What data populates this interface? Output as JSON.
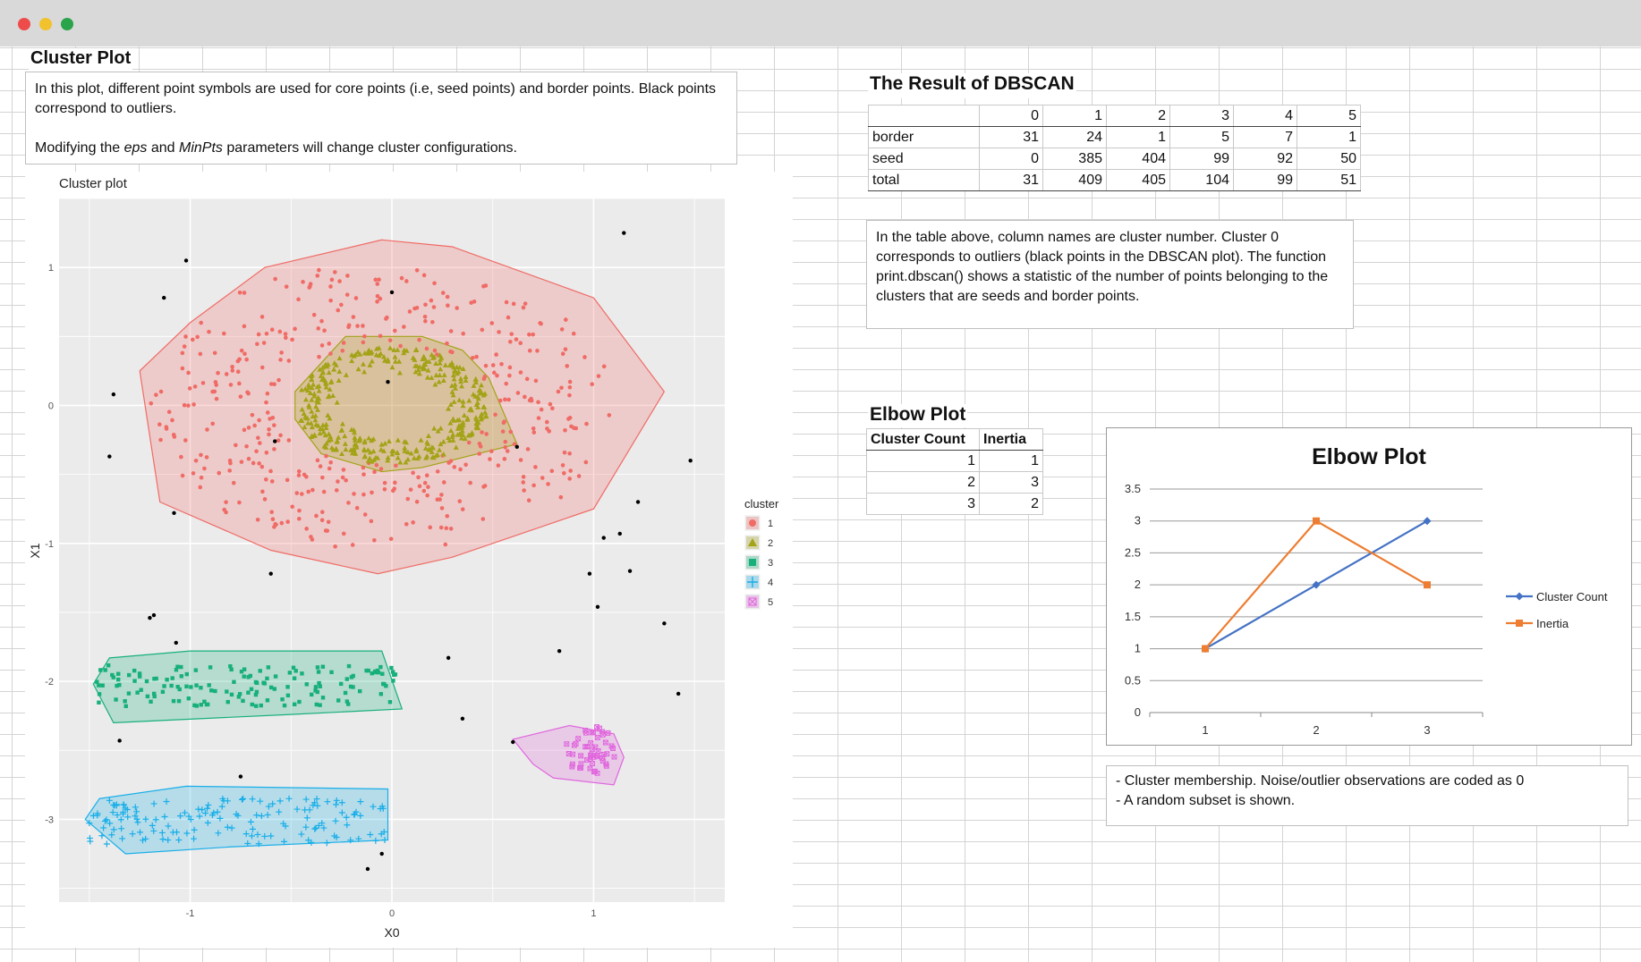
{
  "window": {
    "controls": [
      "close",
      "minimize",
      "maximize"
    ],
    "colors": {
      "close": "#ee4b4b",
      "minimize": "#f2c12e",
      "maximize": "#2aa44a"
    }
  },
  "cluster_section": {
    "header": "Cluster Plot",
    "description_line1": "In this plot, different point symbols are used for core points (i.e, seed points) and border points. Black points correspond to outliers.",
    "description_line2_pre": "Modifying the ",
    "description_line2_eps": "eps",
    "description_line2_mid": " and ",
    "description_line2_minpts": "MinPts",
    "description_line2_post": " parameters will change cluster configurations."
  },
  "chart_data": [
    {
      "type": "scatter",
      "title": "Cluster plot",
      "xlabel": "X0",
      "ylabel": "X1",
      "xlim": [
        -1.65,
        1.65
      ],
      "ylim": [
        -3.6,
        1.5
      ],
      "xticks": [
        "-1",
        "0",
        "1"
      ],
      "yticks": [
        "1",
        "0",
        "-1",
        "-2",
        "-3"
      ],
      "grid": true,
      "legend": {
        "title": "cluster",
        "placement": "right",
        "entries": [
          {
            "name": "1",
            "symbol": "circle",
            "color": "#f06b66"
          },
          {
            "name": "2",
            "symbol": "triangle",
            "color": "#a3a318"
          },
          {
            "name": "3",
            "symbol": "square",
            "color": "#17b07a"
          },
          {
            "name": "4",
            "symbol": "plus",
            "color": "#18aee8"
          },
          {
            "name": "5",
            "symbol": "square-x",
            "color": "#e066dd"
          }
        ]
      },
      "clusters": [
        {
          "name": "1",
          "shape": "ring",
          "center": [
            -0.05,
            0.0
          ],
          "inner_radius": [
            0.55,
            0.42
          ],
          "outer_radius": [
            1.15,
            1.05
          ],
          "hull": [
            [
              -0.05,
              1.2
            ],
            [
              0.3,
              1.15
            ],
            [
              1.0,
              0.78
            ],
            [
              1.35,
              0.1
            ],
            [
              1.0,
              -0.75
            ],
            [
              0.3,
              -1.1
            ],
            [
              -0.07,
              -1.22
            ],
            [
              -0.6,
              -1.05
            ],
            [
              -1.15,
              -0.7
            ],
            [
              -1.25,
              0.25
            ],
            [
              -1.0,
              0.6
            ],
            [
              -0.63,
              1.0
            ]
          ]
        },
        {
          "name": "2",
          "shape": "filled",
          "center": [
            0.0,
            0.0
          ],
          "radius": [
            0.48,
            0.42
          ],
          "hull": [
            [
              -0.23,
              0.5
            ],
            [
              0.15,
              0.5
            ],
            [
              0.35,
              0.4
            ],
            [
              0.48,
              0.2
            ],
            [
              0.62,
              -0.28
            ],
            [
              0.15,
              -0.45
            ],
            [
              -0.05,
              -0.48
            ],
            [
              -0.35,
              -0.35
            ],
            [
              -0.48,
              -0.1
            ],
            [
              -0.48,
              0.1
            ]
          ]
        },
        {
          "name": "3",
          "shape": "band",
          "x_range": [
            -1.48,
            0.05
          ],
          "y_range": [
            -2.28,
            -1.78
          ],
          "hull": [
            [
              -1.4,
              -1.83
            ],
            [
              -1.0,
              -1.78
            ],
            [
              -0.05,
              -1.78
            ],
            [
              0.05,
              -2.2
            ],
            [
              -0.5,
              -2.24
            ],
            [
              -1.38,
              -2.3
            ],
            [
              -1.48,
              -2.02
            ]
          ]
        },
        {
          "name": "4",
          "shape": "band",
          "x_range": [
            -1.5,
            -0.02
          ],
          "y_range": [
            -3.28,
            -2.75
          ],
          "hull": [
            [
              -1.45,
              -2.85
            ],
            [
              -1.02,
              -2.76
            ],
            [
              -0.02,
              -2.78
            ],
            [
              -0.02,
              -3.15
            ],
            [
              -0.8,
              -3.2
            ],
            [
              -1.32,
              -3.25
            ],
            [
              -1.52,
              -3.0
            ]
          ]
        },
        {
          "name": "5",
          "shape": "blob",
          "center": [
            0.98,
            -2.5
          ],
          "radius": [
            0.13,
            0.18
          ],
          "hull": [
            [
              0.6,
              -2.42
            ],
            [
              0.88,
              -2.32
            ],
            [
              1.1,
              -2.38
            ],
            [
              1.15,
              -2.55
            ],
            [
              1.1,
              -2.75
            ],
            [
              0.8,
              -2.7
            ],
            [
              0.7,
              -2.6
            ]
          ]
        }
      ],
      "outliers": [
        [
          -1.02,
          1.05
        ],
        [
          -1.13,
          0.78
        ],
        [
          -1.38,
          0.08
        ],
        [
          -1.4,
          -0.37
        ],
        [
          -1.08,
          -0.78
        ],
        [
          1.15,
          1.25
        ],
        [
          0.0,
          0.82
        ],
        [
          -0.02,
          0.17
        ],
        [
          -0.58,
          -0.26
        ],
        [
          0.62,
          -0.3
        ],
        [
          1.48,
          -0.4
        ],
        [
          1.22,
          -0.7
        ],
        [
          1.13,
          -0.93
        ],
        [
          1.05,
          -0.96
        ],
        [
          -0.6,
          -1.22
        ],
        [
          0.98,
          -1.22
        ],
        [
          1.18,
          -1.2
        ],
        [
          1.02,
          -1.46
        ],
        [
          -1.18,
          -1.52
        ],
        [
          -1.2,
          -1.54
        ],
        [
          -1.07,
          -1.72
        ],
        [
          0.28,
          -1.83
        ],
        [
          0.83,
          -1.78
        ],
        [
          1.35,
          -1.58
        ],
        [
          1.42,
          -2.09
        ],
        [
          -1.35,
          -2.43
        ],
        [
          0.35,
          -2.27
        ],
        [
          0.6,
          -2.44
        ],
        [
          -0.75,
          -2.69
        ],
        [
          -0.05,
          -3.25
        ],
        [
          -0.12,
          -3.36
        ]
      ]
    },
    {
      "type": "line",
      "title": "Elbow Plot",
      "categories": [
        "1",
        "2",
        "3"
      ],
      "ylim": [
        0,
        3.5
      ],
      "yticks": [
        "3.5",
        "3",
        "2.5",
        "2",
        "1.5",
        "1",
        "0.5",
        "0"
      ],
      "legend_placement": "right",
      "series": [
        {
          "name": "Cluster Count",
          "values": [
            1,
            2,
            3
          ],
          "color": "#4472c4",
          "marker": "diamond"
        },
        {
          "name": "Inertia",
          "values": [
            1,
            3,
            2
          ],
          "color": "#ed7d31",
          "marker": "square"
        }
      ]
    }
  ],
  "dbscan": {
    "header": "The Result of DBSCAN",
    "columns": [
      "0",
      "1",
      "2",
      "3",
      "4",
      "5"
    ],
    "rows": [
      {
        "label": "border",
        "values": [
          "31",
          "24",
          "1",
          "5",
          "7",
          "1"
        ]
      },
      {
        "label": "seed",
        "values": [
          "0",
          "385",
          "404",
          "99",
          "92",
          "50"
        ]
      },
      {
        "label": "total",
        "values": [
          "31",
          "409",
          "405",
          "104",
          "99",
          "51"
        ]
      }
    ],
    "note": "In the table above, column names are cluster number. Cluster 0 corresponds to outliers (black points in the DBSCAN plot). The function print.dbscan() shows a statistic of the number of points belonging to the clusters that are seeds and border points."
  },
  "elbow": {
    "header": "Elbow Plot",
    "columns": [
      "Cluster Count",
      "Inertia"
    ],
    "rows": [
      [
        "1",
        "1"
      ],
      [
        "2",
        "3"
      ],
      [
        "3",
        "2"
      ]
    ],
    "note_line1": "- Cluster membership. Noise/outlier observations are coded as 0",
    "note_line2": "- A random subset is shown."
  }
}
